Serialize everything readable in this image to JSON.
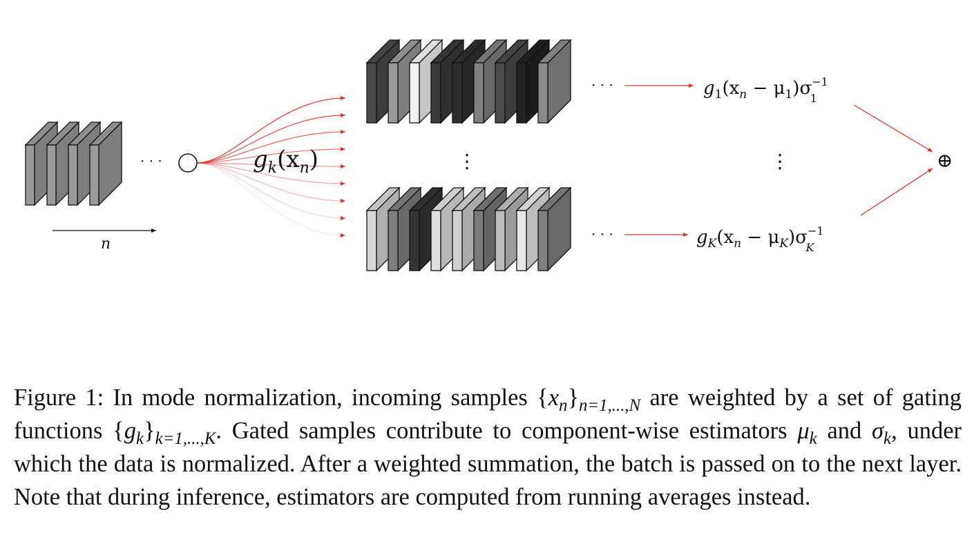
{
  "figure": {
    "dots": "· · ·",
    "vdots": "⋮",
    "index_label": "n",
    "gate_label": {
      "g": "g",
      "sub": "k",
      "arg": "(x",
      "argsub": "n",
      "close": ")"
    },
    "top_output": {
      "g": "g",
      "gsub": "1",
      "mid": "(x",
      "xsub": "n",
      "minus": " − μ",
      "musub": "1",
      "close": ")σ",
      "sigsup": "−1",
      "sigsub": "1"
    },
    "bottom_output": {
      "g": "g",
      "gsub": "K",
      "mid": "(x",
      "xsub": "n",
      "minus": " − μ",
      "musub": "K",
      "close": ")σ",
      "sigsup": "−1",
      "sigsub": "K"
    },
    "sum_symbol": "⊕",
    "accent_color": "#e0342a",
    "input_stack_shades": [
      "#9a9a9a",
      "#9a9a9a",
      "#9a9a9a",
      "#9a9a9a"
    ],
    "top_stack_shades": [
      "#4a4a4a",
      "#9a9a9a",
      "#f2f2f2",
      "#3a3a3a",
      "#2e2e2e",
      "#7f7f7f",
      "#4a4a4a",
      "#222222",
      "#8a8a8a"
    ],
    "bottom_stack_shades": [
      "#d6d6d6",
      "#7f7f7f",
      "#333333",
      "#e0e0e0",
      "#d0d0d0",
      "#7a7a7a",
      "#bdbdbd",
      "#e6e6e6",
      "#7f7f7f"
    ]
  },
  "caption": {
    "p1": "Figure 1: In mode normalization, incoming samples {",
    "x": "x",
    "xsub": "n",
    "p2": "}",
    "range_n": "n=1,...,N",
    "p3": " are weighted by a set of gating functions {",
    "g": "g",
    "gsub": "k",
    "p4": "}",
    "range_k": "k=1,...,K",
    "p5": ".  Gated samples contribute to component-wise estimators ",
    "mu": "μ",
    "musub": "k",
    "p6": " and ",
    "sigma": "σ",
    "sigsub": "k",
    "p7": ", under which the data is normalized. After a weighted summation, the batch is passed on to the next layer. Note that during inference, estimators are computed from running averages instead."
  }
}
